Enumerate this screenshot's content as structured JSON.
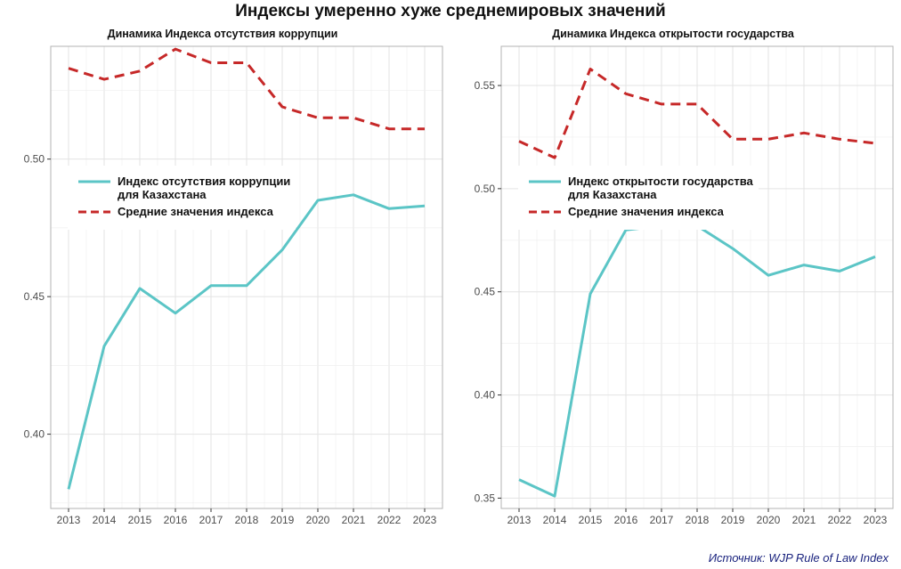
{
  "title": "Индексы умеренно хуже среднемировых значений",
  "source": "Источник: WJP Rule of Law Index",
  "colors": {
    "kz": "#5BC5C6",
    "avg": "#C62828",
    "grid": "#e3e3e3",
    "panel_border": "#b3b3b3"
  },
  "chart_data": [
    {
      "type": "line",
      "title": "Динамика Индекса отсутствия коррупции",
      "xlabel": "",
      "ylabel": "",
      "categories": [
        "2013",
        "2014",
        "2015",
        "2016",
        "2017",
        "2018",
        "2019",
        "2020",
        "2021",
        "2022",
        "2023"
      ],
      "ylim": [
        0.373,
        0.541
      ],
      "yticks": [
        0.4,
        0.45,
        0.5
      ],
      "ytick_labels": [
        "0.40",
        "0.45",
        "0.50"
      ],
      "grid": true,
      "legend_position": "left-middle",
      "series": [
        {
          "name": "Индекс отсутствия коррупции\nдля Казахстана",
          "style": "solid",
          "color": "#5BC5C6",
          "values": [
            0.38,
            0.432,
            0.453,
            0.444,
            0.454,
            0.454,
            0.467,
            0.485,
            0.487,
            0.482,
            0.483
          ]
        },
        {
          "name": "Средние значения индекса",
          "style": "dashed",
          "color": "#C62828",
          "values": [
            0.533,
            0.529,
            0.532,
            0.54,
            0.535,
            0.535,
            0.519,
            0.515,
            0.515,
            0.511,
            0.511
          ]
        }
      ]
    },
    {
      "type": "line",
      "title": "Динамика Индекса открытости государства",
      "xlabel": "",
      "ylabel": "",
      "categories": [
        "2013",
        "2014",
        "2015",
        "2016",
        "2017",
        "2018",
        "2019",
        "2020",
        "2021",
        "2022",
        "2023"
      ],
      "ylim": [
        0.345,
        0.569
      ],
      "yticks": [
        0.35,
        0.4,
        0.45,
        0.5,
        0.55
      ],
      "ytick_labels": [
        "0.35",
        "0.40",
        "0.45",
        "0.50",
        "0.55"
      ],
      "grid": true,
      "legend_position": "left-middle",
      "series": [
        {
          "name": "Индекс открытости государства\nдля Казахстана",
          "style": "solid",
          "color": "#5BC5C6",
          "values": [
            0.359,
            0.351,
            0.449,
            0.48,
            0.482,
            0.482,
            0.471,
            0.458,
            0.463,
            0.46,
            0.467
          ]
        },
        {
          "name": "Средние значения индекса",
          "style": "dashed",
          "color": "#C62828",
          "values": [
            0.523,
            0.515,
            0.558,
            0.546,
            0.541,
            0.541,
            0.524,
            0.524,
            0.527,
            0.524,
            0.522
          ]
        }
      ]
    }
  ]
}
